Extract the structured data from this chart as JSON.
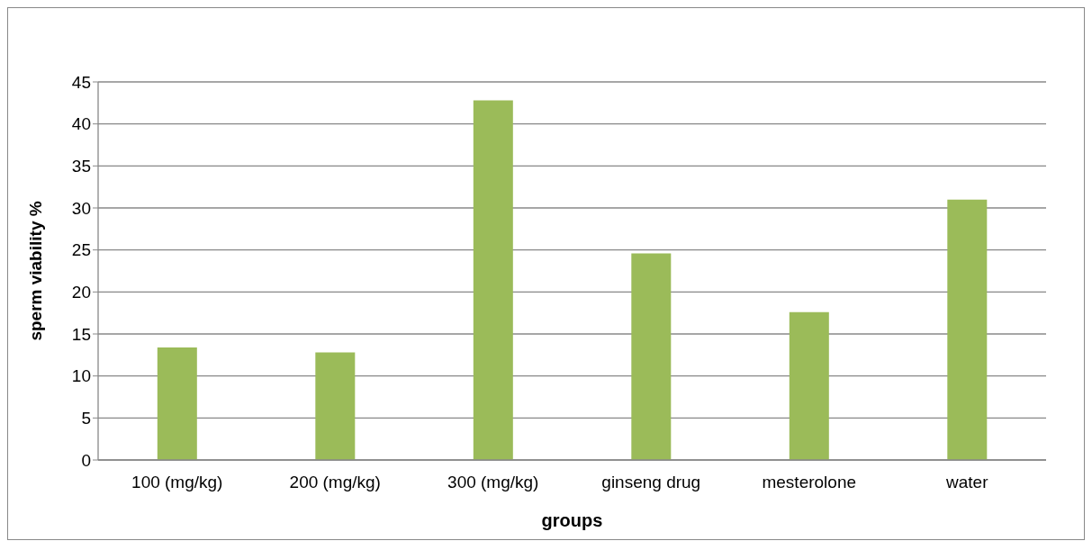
{
  "chart_data": {
    "type": "bar",
    "xlabel": "groups",
    "ylabel": "sperm viability %",
    "categories": [
      "100 (mg/kg)",
      "200 (mg/kg)",
      "300 (mg/kg)",
      "ginseng drug",
      "mesterolone",
      "water"
    ],
    "values": [
      13.4,
      12.8,
      42.8,
      24.6,
      17.6,
      31.0
    ],
    "color": "#9bbb59",
    "ylim": [
      0,
      45
    ],
    "yticks": [
      0,
      5,
      10,
      15,
      20,
      25,
      30,
      35,
      40,
      45
    ],
    "grid": "y"
  }
}
